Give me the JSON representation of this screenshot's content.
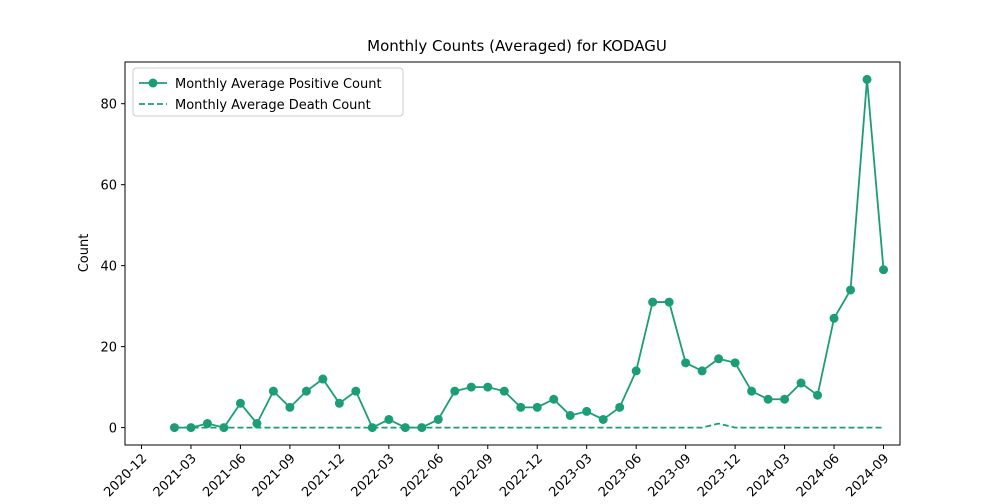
{
  "chart_data": {
    "type": "line",
    "title": "Monthly Counts (Averaged) for KODAGU",
    "ylabel": "Count",
    "x": [
      "2021-02",
      "2021-03",
      "2021-04",
      "2021-05",
      "2021-06",
      "2021-07",
      "2021-08",
      "2021-09",
      "2021-10",
      "2021-11",
      "2021-12",
      "2022-01",
      "2022-02",
      "2022-03",
      "2022-04",
      "2022-05",
      "2022-06",
      "2022-07",
      "2022-08",
      "2022-09",
      "2022-10",
      "2022-11",
      "2022-12",
      "2023-01",
      "2023-02",
      "2023-03",
      "2023-04",
      "2023-05",
      "2023-06",
      "2023-07",
      "2023-08",
      "2023-09",
      "2023-10",
      "2023-11",
      "2023-12",
      "2024-01",
      "2024-02",
      "2024-03",
      "2024-04",
      "2024-05",
      "2024-06",
      "2024-07",
      "2024-08",
      "2024-09"
    ],
    "series": [
      {
        "name": "Monthly Average Positive Count",
        "color": "#1b9e77",
        "marker": true,
        "dashed": false,
        "values": [
          0,
          0,
          1,
          0,
          6,
          1,
          9,
          5,
          9,
          12,
          6,
          9,
          0,
          2,
          0,
          0,
          2,
          9,
          10,
          10,
          9,
          5,
          5,
          7,
          3,
          4,
          2,
          5,
          14,
          31,
          31,
          16,
          14,
          17,
          16,
          9,
          7,
          7,
          11,
          8,
          27,
          34,
          86,
          39
        ]
      },
      {
        "name": "Monthly Average Death Count",
        "color": "#1b9e77",
        "marker": false,
        "dashed": true,
        "values": [
          0,
          0,
          0,
          0,
          0,
          0,
          0,
          0,
          0,
          0,
          0,
          0,
          0,
          0,
          0,
          0,
          0,
          0,
          0,
          0,
          0,
          0,
          0,
          0,
          0,
          0,
          0,
          0,
          0,
          0,
          0,
          0,
          0,
          1,
          0,
          0,
          0,
          0,
          0,
          0,
          0,
          0,
          0,
          0
        ]
      }
    ],
    "xlim": [
      "2020-11",
      "2024-10"
    ],
    "xticks": [
      "2020-12",
      "2021-03",
      "2021-06",
      "2021-09",
      "2021-12",
      "2022-03",
      "2022-06",
      "2022-09",
      "2022-12",
      "2023-03",
      "2023-06",
      "2023-09",
      "2023-12",
      "2024-03",
      "2024-06",
      "2024-09"
    ],
    "ylim": [
      -4.3,
      90.3
    ],
    "yticks": [
      0,
      20,
      40,
      60,
      80
    ],
    "grid": false,
    "legend": "upper left"
  }
}
